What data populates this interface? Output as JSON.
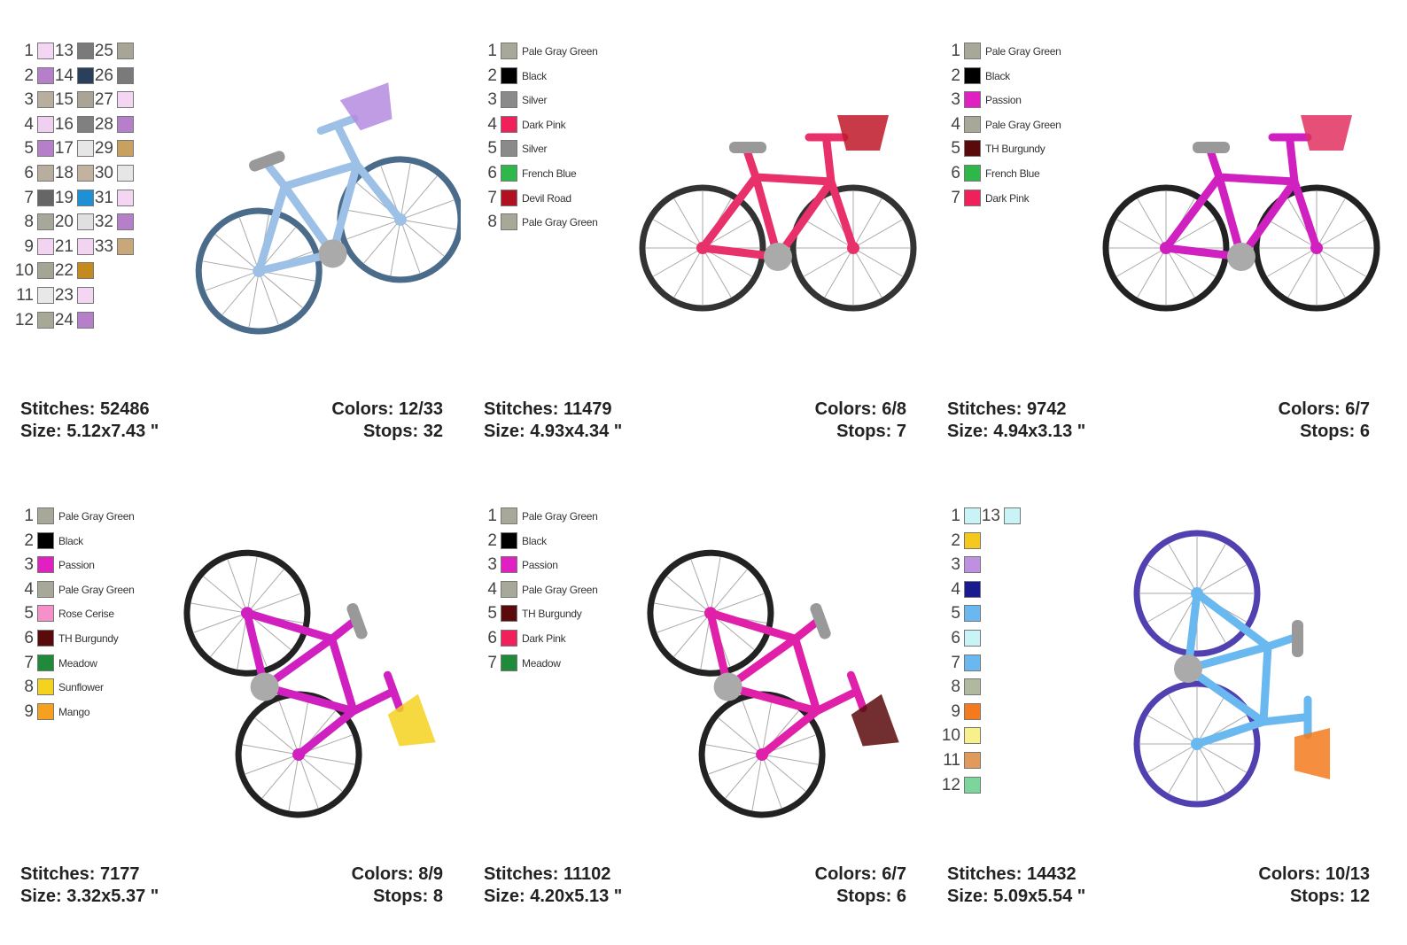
{
  "panels": [
    {
      "colors": [
        {
          "n": "1",
          "color": "#f3d6f3"
        },
        {
          "n": "2",
          "color": "#b57fc9"
        },
        {
          "n": "3",
          "color": "#b8ae9e"
        },
        {
          "n": "4",
          "color": "#f0d0f0"
        },
        {
          "n": "5",
          "color": "#b57fc9"
        },
        {
          "n": "6",
          "color": "#b8ae9e"
        },
        {
          "n": "7",
          "color": "#666666"
        },
        {
          "n": "8",
          "color": "#a8a89a"
        },
        {
          "n": "9",
          "color": "#f2d4f2"
        },
        {
          "n": "10",
          "color": "#a5a596"
        },
        {
          "n": "11",
          "color": "#e8e8e8"
        },
        {
          "n": "12",
          "color": "#a8a896"
        },
        {
          "n": "13",
          "color": "#7a7a7a"
        },
        {
          "n": "14",
          "color": "#2a3f5a"
        },
        {
          "n": "15",
          "color": "#a8a496"
        },
        {
          "n": "16",
          "color": "#808080"
        },
        {
          "n": "17",
          "color": "#e6e6e6"
        },
        {
          "n": "18",
          "color": "#c4b2a0"
        },
        {
          "n": "19",
          "color": "#1e90d6"
        },
        {
          "n": "20",
          "color": "#e0e0e0"
        },
        {
          "n": "21",
          "color": "#f2d4f2"
        },
        {
          "n": "22",
          "color": "#c48a1e"
        },
        {
          "n": "23",
          "color": "#f2d6f2"
        },
        {
          "n": "24",
          "color": "#b57fc9"
        },
        {
          "n": "25",
          "color": "#a8a496"
        },
        {
          "n": "26",
          "color": "#7a7a7a"
        },
        {
          "n": "27",
          "color": "#f2d6f2"
        },
        {
          "n": "28",
          "color": "#b57fc9"
        },
        {
          "n": "29",
          "color": "#c8a060"
        },
        {
          "n": "30",
          "color": "#e6e6e6"
        },
        {
          "n": "31",
          "color": "#f2d6f2"
        },
        {
          "n": "32",
          "color": "#b57fc9"
        },
        {
          "n": "33",
          "color": "#c8a878"
        }
      ],
      "stitches": "Stitches: 52486",
      "size": "Size: 5.12x7.43 \"",
      "colors_used": "Colors: 12/33",
      "stops": "Stops: 32"
    },
    {
      "colors": [
        {
          "n": "1",
          "color": "#a8a898",
          "name": "Pale Gray Green"
        },
        {
          "n": "2",
          "color": "#000000",
          "name": "Black"
        },
        {
          "n": "3",
          "color": "#8a8a8a",
          "name": "Silver"
        },
        {
          "n": "4",
          "color": "#f0205a",
          "name": "Dark Pink"
        },
        {
          "n": "5",
          "color": "#8a8a8a",
          "name": "Silver"
        },
        {
          "n": "6",
          "color": "#2eb84a",
          "name": "French Blue"
        },
        {
          "n": "7",
          "color": "#b01020",
          "name": "Devil Road"
        },
        {
          "n": "8",
          "color": "#a8a898",
          "name": "Pale Gray Green"
        }
      ],
      "stitches": "Stitches: 11479",
      "size": "Size: 4.93x4.34 \"",
      "colors_used": "Colors: 6/8",
      "stops": "Stops: 7"
    },
    {
      "colors": [
        {
          "n": "1",
          "color": "#a8a898",
          "name": "Pale Gray Green"
        },
        {
          "n": "2",
          "color": "#000000",
          "name": "Black"
        },
        {
          "n": "3",
          "color": "#e020c0",
          "name": "Passion"
        },
        {
          "n": "4",
          "color": "#a8a898",
          "name": "Pale Gray Green"
        },
        {
          "n": "5",
          "color": "#5a0a0a",
          "name": "TH Burgundy"
        },
        {
          "n": "6",
          "color": "#2eb84a",
          "name": "French Blue"
        },
        {
          "n": "7",
          "color": "#f0205a",
          "name": "Dark Pink"
        }
      ],
      "stitches": "Stitches: 9742",
      "size": "Size: 4.94x3.13 \"",
      "colors_used": "Colors: 6/7",
      "stops": "Stops: 6"
    },
    {
      "colors": [
        {
          "n": "1",
          "color": "#a8a898",
          "name": "Pale Gray Green"
        },
        {
          "n": "2",
          "color": "#000000",
          "name": "Black"
        },
        {
          "n": "3",
          "color": "#e020c0",
          "name": "Passion"
        },
        {
          "n": "4",
          "color": "#a8a898",
          "name": "Pale Gray Green"
        },
        {
          "n": "5",
          "color": "#f590c8",
          "name": "Rose Cerise"
        },
        {
          "n": "6",
          "color": "#5a0a0a",
          "name": "TH Burgundy"
        },
        {
          "n": "7",
          "color": "#1e8a3a",
          "name": "Meadow"
        },
        {
          "n": "8",
          "color": "#f5d21e",
          "name": "Sunflower"
        },
        {
          "n": "9",
          "color": "#f5a01e",
          "name": "Mango"
        }
      ],
      "stitches": "Stitches: 7177",
      "size": "Size: 3.32x5.37 \"",
      "colors_used": "Colors: 8/9",
      "stops": "Stops: 8"
    },
    {
      "colors": [
        {
          "n": "1",
          "color": "#a8a898",
          "name": "Pale Gray Green"
        },
        {
          "n": "2",
          "color": "#000000",
          "name": "Black"
        },
        {
          "n": "3",
          "color": "#e020c0",
          "name": "Passion"
        },
        {
          "n": "4",
          "color": "#a8a898",
          "name": "Pale Gray Green"
        },
        {
          "n": "5",
          "color": "#5a0a0a",
          "name": "TH Burgundy"
        },
        {
          "n": "6",
          "color": "#f0205a",
          "name": "Dark Pink"
        },
        {
          "n": "7",
          "color": "#1e8a3a",
          "name": "Meadow"
        }
      ],
      "stitches": "Stitches: 11102",
      "size": "Size: 4.20x5.13 \"",
      "colors_used": "Colors: 6/7",
      "stops": "Stops: 6"
    },
    {
      "colors": [
        {
          "n": "1",
          "color": "#c8f4f8"
        },
        {
          "n": "2",
          "color": "#f5c81e"
        },
        {
          "n": "3",
          "color": "#c090e0"
        },
        {
          "n": "4",
          "color": "#1a1a90"
        },
        {
          "n": "5",
          "color": "#6ab8f0"
        },
        {
          "n": "6",
          "color": "#c8f4f8"
        },
        {
          "n": "7",
          "color": "#6ab8f0"
        },
        {
          "n": "8",
          "color": "#b0b8a0"
        },
        {
          "n": "9",
          "color": "#f57a1e"
        },
        {
          "n": "10",
          "color": "#f8f08a"
        },
        {
          "n": "11",
          "color": "#e09a5a"
        },
        {
          "n": "12",
          "color": "#7ad69a"
        },
        {
          "n": "13",
          "color": "#c8f4f8"
        }
      ],
      "stitches": "Stitches: 14432",
      "size": "Size: 5.09x5.54 \"",
      "colors_used": "Colors: 10/13",
      "stops": "Stops: 12"
    }
  ]
}
